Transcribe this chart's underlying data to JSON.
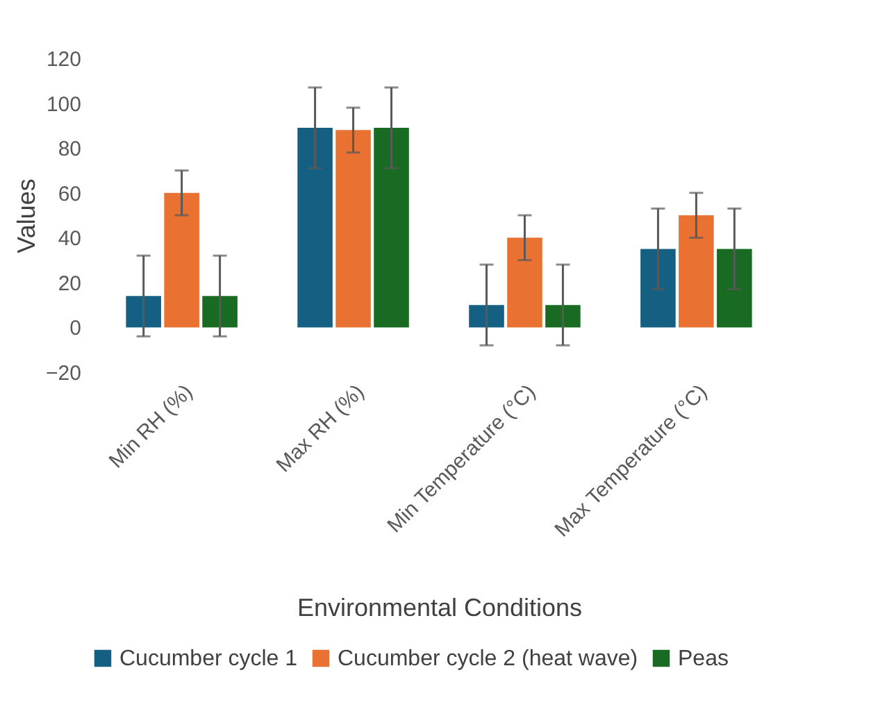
{
  "chart_data": {
    "type": "bar",
    "xlabel": "Environmental Conditions",
    "ylabel": "Values",
    "categories": [
      "Min RH (%)",
      "Max RH (%)",
      "Min Temperature (°C)",
      "Max Temperature (°C)"
    ],
    "series": [
      {
        "name": "Cucumber cycle 1",
        "color": "#156082",
        "values": [
          14,
          89,
          10,
          35
        ],
        "errors": [
          18,
          18,
          18,
          18
        ]
      },
      {
        "name": "Cucumber cycle 2 (heat wave)",
        "color": "#e97132",
        "values": [
          60,
          88,
          40,
          50
        ],
        "errors": [
          10,
          10,
          10,
          10
        ]
      },
      {
        "name": "Peas",
        "color": "#196b24",
        "values": [
          14,
          89,
          10,
          35
        ],
        "errors": [
          18,
          18,
          18,
          18
        ]
      }
    ],
    "ylim": [
      -20,
      120
    ],
    "yticks": [
      -20,
      0,
      20,
      40,
      60,
      80,
      100,
      120
    ],
    "legend": "bottom"
  }
}
